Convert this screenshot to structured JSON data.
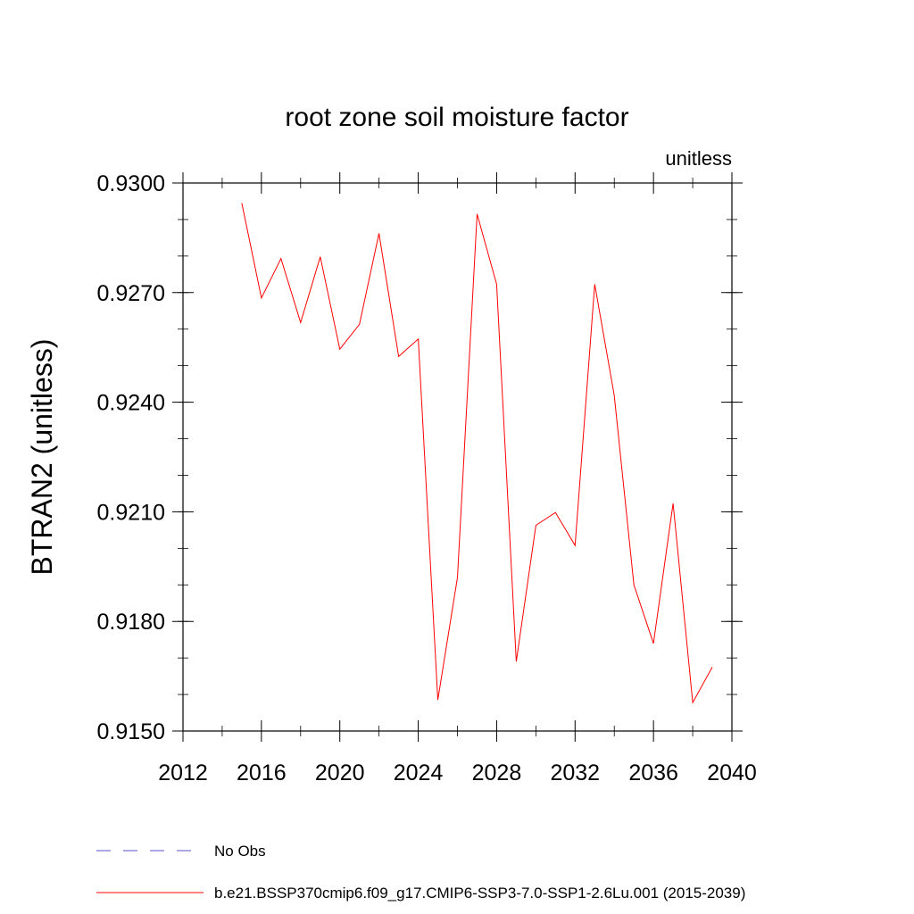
{
  "chart_data": {
    "type": "line",
    "title": "root zone soil moisture factor",
    "units_label": "unitless",
    "ylabel": "BTRAN2  (unitless)",
    "xlabel": "",
    "xlim": [
      2012,
      2040
    ],
    "ylim": [
      0.915,
      0.93
    ],
    "x_ticks": [
      "2012",
      "2016",
      "2020",
      "2024",
      "2028",
      "2032",
      "2036",
      "2040"
    ],
    "x_tick_values": [
      2012,
      2016,
      2020,
      2024,
      2028,
      2032,
      2036,
      2040
    ],
    "y_ticks": [
      "0.9150",
      "0.9180",
      "0.9210",
      "0.9240",
      "0.9270",
      "0.9300"
    ],
    "y_tick_values": [
      0.915,
      0.918,
      0.921,
      0.924,
      0.927,
      0.93
    ],
    "grid": false,
    "series": [
      {
        "name": "b.e21.BSSP370cmip6.f09_g17.CMIP6-SSP3-7.0-SSP1-2.6Lu.001 (2015-2039)",
        "color": "#ff0000",
        "x": [
          2015,
          2016,
          2017,
          2018,
          2019,
          2020,
          2021,
          2022,
          2023,
          2024,
          2025,
          2026,
          2027,
          2028,
          2029,
          2030,
          2031,
          2032,
          2033,
          2034,
          2035,
          2036,
          2037,
          2038,
          2039
        ],
        "values": [
          0.92945,
          0.92685,
          0.92793,
          0.92618,
          0.92798,
          0.92545,
          0.92613,
          0.92862,
          0.92525,
          0.92573,
          0.91585,
          0.9192,
          0.92915,
          0.92723,
          0.9169,
          0.92063,
          0.92098,
          0.92008,
          0.92723,
          0.92418,
          0.919,
          0.9174,
          0.92123,
          0.91578,
          0.91675
        ]
      }
    ],
    "legend": [
      {
        "label": "No Obs",
        "color": "#5a4fcf",
        "style": "dashed"
      },
      {
        "label": "b.e21.BSSP370cmip6.f09_g17.CMIP6-SSP3-7.0-SSP1-2.6Lu.001 (2015-2039)",
        "color": "#ff0000",
        "style": "solid"
      }
    ],
    "legend_position": "bottom"
  }
}
